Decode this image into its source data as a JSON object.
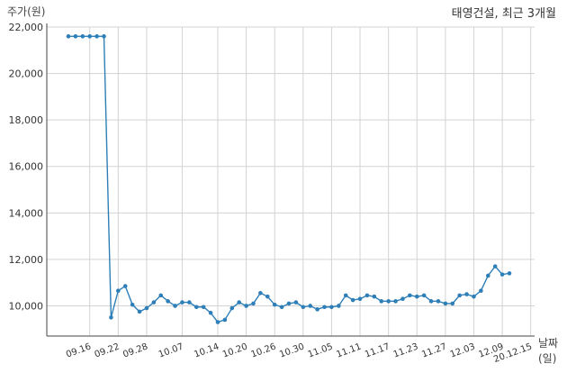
{
  "chart_data": {
    "type": "line",
    "title": "태영건설, 최근 3개월",
    "ylabel": "주가(원)",
    "xlabel": "날짜(일)",
    "ylim": [
      8700,
      22000
    ],
    "yticks": [
      10000,
      12000,
      14000,
      16000,
      18000,
      20000,
      22000
    ],
    "ytick_labels": [
      "10,000",
      "12,000",
      "14,000",
      "16,000",
      "18,000",
      "20,000",
      "22,000"
    ],
    "xtick_labels": [
      "09.16",
      "09.22",
      "09.28",
      "10.07",
      "10.14",
      "10.20",
      "10.26",
      "10.30",
      "11.05",
      "11.11",
      "11.17",
      "11.23",
      "11.27",
      "12.03",
      "12.09",
      "20.12.15"
    ],
    "xtick_positions": [
      3,
      7,
      11,
      16,
      21,
      25,
      29,
      33,
      37,
      41,
      45,
      49,
      53,
      57,
      61,
      65
    ],
    "grid": true,
    "colors": {
      "line": "#2e7fb8",
      "grid": "#d3d3d3",
      "axis": "#444444"
    },
    "series": [
      {
        "values": [
          21600,
          21600,
          21600,
          21600,
          21600,
          21600,
          9500,
          10650,
          10850,
          10050,
          9750,
          9900,
          10150,
          10450,
          10200,
          10000,
          10150,
          10150,
          9950,
          9950,
          9700,
          9300,
          9400,
          9900,
          10150,
          10000,
          10100,
          10550,
          10400,
          10050,
          9950,
          10100,
          10150,
          9950,
          10000,
          9850,
          9950,
          9950,
          10000,
          10450,
          10250,
          10300,
          10450,
          10400,
          10200,
          10200,
          10200,
          10300,
          10450,
          10400,
          10450,
          10200,
          10200,
          10100,
          10100,
          10450,
          10500,
          10400,
          10650,
          11300,
          11700,
          11350,
          11400
        ]
      }
    ]
  }
}
